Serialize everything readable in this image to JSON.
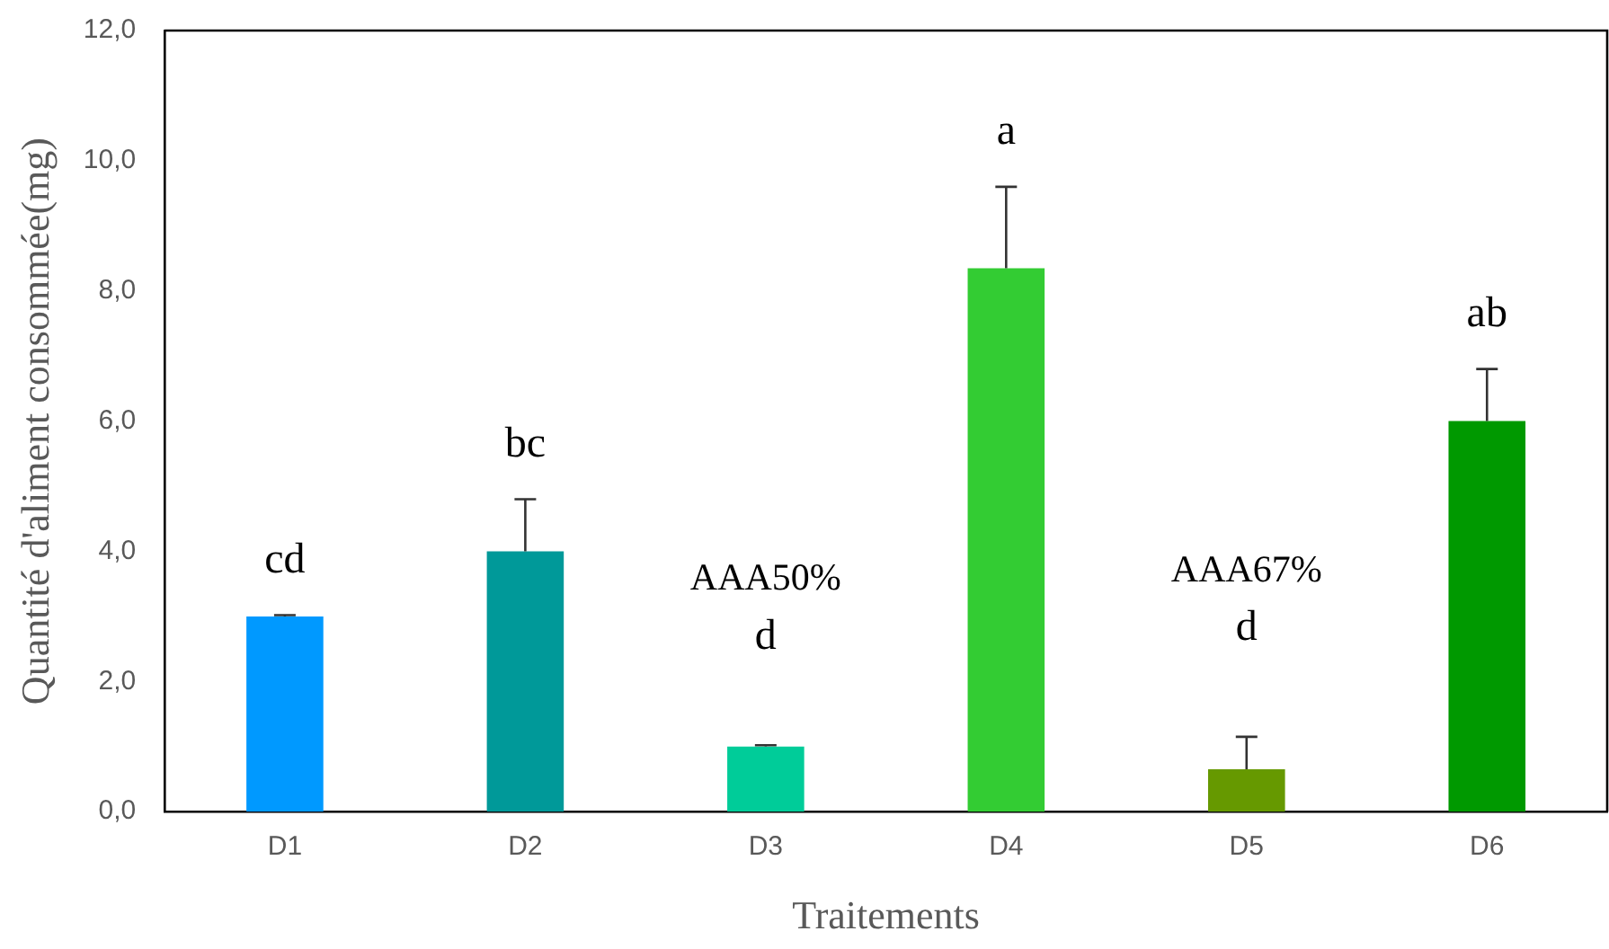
{
  "chart_data": {
    "type": "bar",
    "xlabel": "Traitements",
    "ylabel": "Quantité d'aliment consommée(mg)",
    "categories": [
      "D1",
      "D2",
      "D3",
      "D4",
      "D5",
      "D6"
    ],
    "values": [
      3.0,
      4.0,
      1.0,
      8.35,
      0.65,
      6.0
    ],
    "colors": [
      "#0099ff",
      "#009999",
      "#00cc99",
      "#33cc33",
      "#669900",
      "#009900"
    ],
    "errors": [
      [
        3.0,
        3.02
      ],
      [
        4.0,
        4.8
      ],
      [
        1.0,
        1.02
      ],
      [
        8.35,
        9.6
      ],
      [
        0.65,
        1.15
      ],
      [
        6.0,
        6.8
      ]
    ],
    "ylim": [
      0,
      12
    ],
    "yticks": [
      {
        "value": 0,
        "label": "0,0"
      },
      {
        "value": 2,
        "label": "2,0"
      },
      {
        "value": 4,
        "label": "4,0"
      },
      {
        "value": 6,
        "label": "6,0"
      },
      {
        "value": 8,
        "label": "8,0"
      },
      {
        "value": 10,
        "label": "10,0"
      },
      {
        "value": 12,
        "label": "12,0"
      }
    ],
    "value_labels": [
      "cd",
      "bc",
      "d",
      "a",
      "d",
      "ab"
    ],
    "annotations": [
      "AAA50%",
      "AAA67%"
    ],
    "grid": false,
    "legend": false
  }
}
